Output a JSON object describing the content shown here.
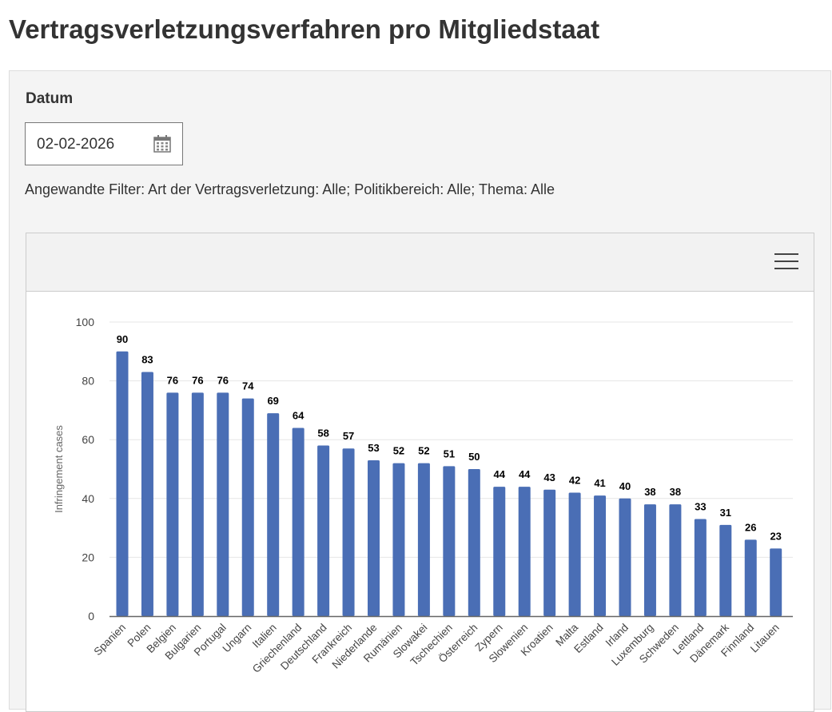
{
  "page_title": "Vertragsverletzungsverfahren pro Mitgliedstaat",
  "date_label": "Datum",
  "date_value": "02-02-2026",
  "filters_text": "Angewandte Filter: Art der Vertragsverletzung: Alle; Politikbereich: Alle; Thema: Alle",
  "icons": {
    "calendar": "calendar-icon",
    "menu": "hamburger-menu-icon"
  },
  "chart_data": {
    "type": "bar",
    "ylabel": "Infringement cases",
    "ylim": [
      0,
      100
    ],
    "yticks": [
      0,
      20,
      40,
      60,
      80,
      100
    ],
    "grid": true,
    "bar_color": "#4a6eb5",
    "categories": [
      "Spanien",
      "Polen",
      "Belgien",
      "Bulgarien",
      "Portugal",
      "Ungarn",
      "Italien",
      "Griechenland",
      "Deutschland",
      "Frankreich",
      "Niederlande",
      "Rumänien",
      "Slowakei",
      "Tschechien",
      "Österreich",
      "Zypern",
      "Slowenien",
      "Kroatien",
      "Malta",
      "Estland",
      "Irland",
      "Luxemburg",
      "Schweden",
      "Lettland",
      "Dänemark",
      "Finnland",
      "Litauen"
    ],
    "values": [
      90,
      83,
      76,
      76,
      76,
      74,
      69,
      64,
      58,
      57,
      53,
      52,
      52,
      51,
      50,
      44,
      44,
      43,
      42,
      41,
      40,
      38,
      38,
      33,
      31,
      26,
      23
    ]
  }
}
